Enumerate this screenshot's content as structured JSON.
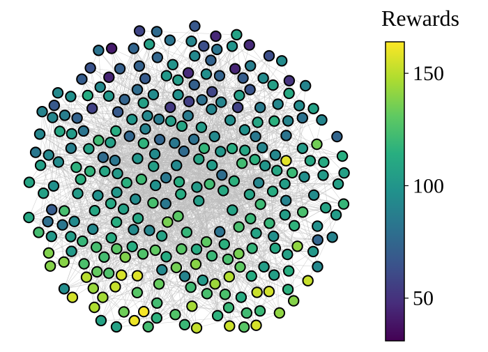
{
  "chart_data": {
    "type": "network",
    "colorbar": {
      "title": "Rewards",
      "colormap": "viridis",
      "vmin": 31,
      "vmax": 164,
      "ticks": [
        50,
        100,
        150
      ],
      "tick_labels": [
        "50",
        "100",
        "150"
      ]
    },
    "graph": {
      "node_count": 290,
      "node_color_by": "reward",
      "node_outline_color": "#000000",
      "edge_color": "#bdbdbd",
      "reward_distribution": {
        "min": 31,
        "max": 164,
        "typical": 105
      }
    },
    "colors": {
      "background": "#ffffff",
      "edge": "#bdbdbd",
      "node_outline": "#000000"
    }
  }
}
